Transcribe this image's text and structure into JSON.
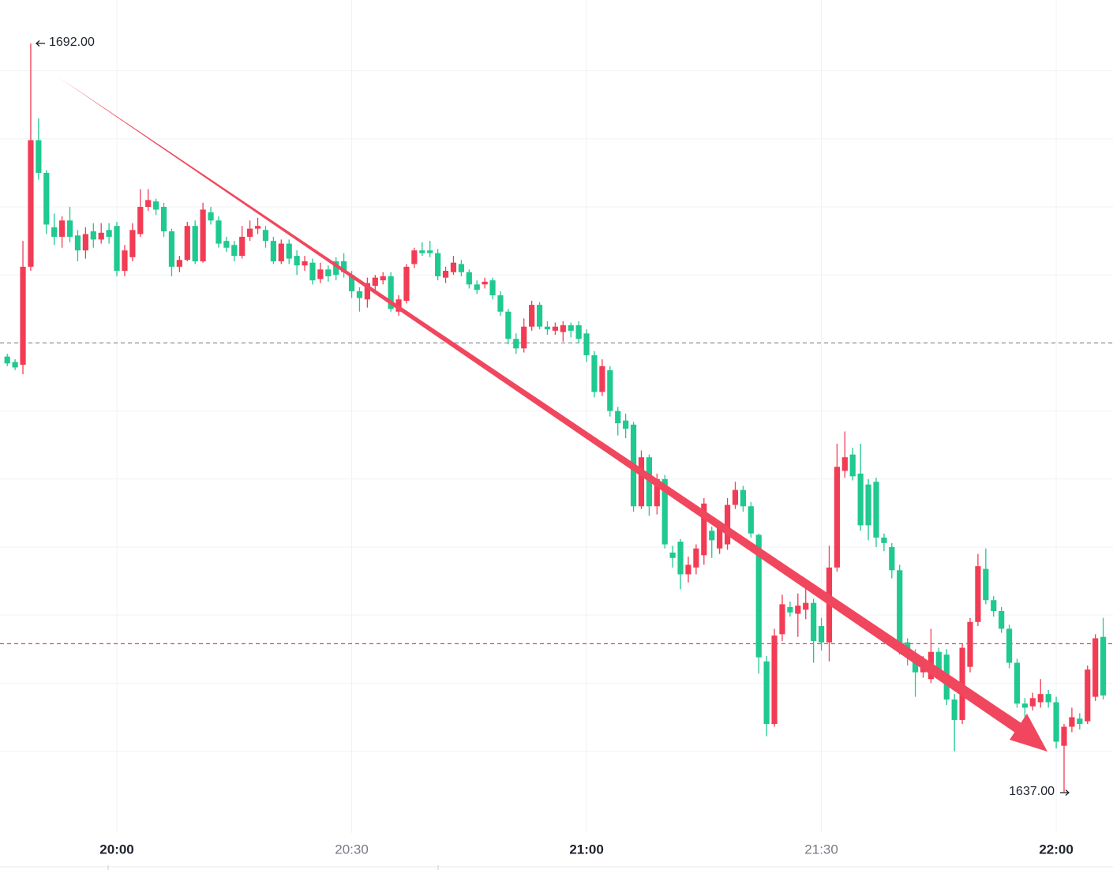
{
  "chart_data": {
    "type": "candlestick",
    "categories": [
      null,
      null,
      null,
      null,
      null,
      null,
      null,
      null,
      null,
      null,
      null,
      null,
      null,
      null,
      "20:00",
      null,
      null,
      null,
      null,
      null,
      null,
      null,
      null,
      null,
      null,
      null,
      null,
      null,
      null,
      null,
      null,
      null,
      null,
      null,
      null,
      null,
      null,
      null,
      null,
      null,
      null,
      null,
      null,
      null,
      "20:30",
      null,
      null,
      null,
      null,
      null,
      null,
      null,
      null,
      null,
      null,
      null,
      null,
      null,
      null,
      null,
      null,
      null,
      null,
      null,
      null,
      null,
      null,
      null,
      null,
      null,
      null,
      null,
      null,
      null,
      "21:00",
      null,
      null,
      null,
      null,
      null,
      null,
      null,
      null,
      null,
      null,
      null,
      null,
      null,
      null,
      null,
      null,
      null,
      null,
      null,
      null,
      null,
      null,
      null,
      null,
      null,
      null,
      null,
      null,
      null,
      "21:30",
      null,
      null,
      null,
      null,
      null,
      null,
      null,
      null,
      null,
      null,
      null,
      null,
      null,
      null,
      null,
      null,
      null,
      null,
      null,
      null,
      null,
      null,
      null,
      null,
      null,
      null,
      null,
      null,
      null,
      "22:00",
      null,
      null,
      null,
      null,
      null,
      null
    ],
    "open": [
      1669.0,
      1668.6,
      1668.4,
      1675.6,
      1684.9,
      1682.5,
      1678.5,
      1677.8,
      1679.0,
      1677.9,
      1676.8,
      1678.2,
      1677.6,
      1678.3,
      1678.6,
      1675.3,
      1676.3,
      1678.0,
      1680.0,
      1680.4,
      1680.0,
      1678.2,
      1675.6,
      1676.1,
      1678.6,
      1676.0,
      1679.6,
      1679.0,
      1677.5,
      1677.2,
      1676.4,
      1677.8,
      1678.4,
      1678.3,
      1677.5,
      1676.0,
      1677.3,
      1676.4,
      1675.7,
      1675.9,
      1674.7,
      1675.4,
      1676.0,
      1676.0,
      1675.0,
      1673.8,
      1673.2,
      1674.2,
      1674.6,
      1674.9,
      1672.3,
      1673.1,
      1675.8,
      1676.8,
      1676.8,
      1676.6,
      1674.8,
      1675.2,
      1675.8,
      1675.2,
      1674.3,
      1674.3,
      1674.6,
      1673.5,
      1672.3,
      1670.3,
      1669.6,
      1671.2,
      1672.8,
      1671.2,
      1670.9,
      1670.8,
      1671.3,
      1671.3,
      1670.7,
      1669.1,
      1666.4,
      1668.0,
      1665.0,
      1664.3,
      1664.0,
      1658.0,
      1661.6,
      1658.0,
      1660.0,
      1654.6,
      1655.4,
      1653.0,
      1653.5,
      1654.4,
      1656.2,
      1654.9,
      1655.2,
      1658.1,
      1659.2,
      1658.0,
      1655.9,
      1646.6,
      1642.0,
      1648.6,
      1650.6,
      1650.1,
      1650.4,
      1650.9,
      1649.2,
      1648.0,
      1653.5,
      1660.6,
      1661.8,
      1660.4,
      1659.6,
      1659.8,
      1655.7,
      1655.0,
      1653.3,
      1648.0,
      1647.1,
      1645.8,
      1645.3,
      1647.3,
      1647.1,
      1643.8,
      1642.3,
      1646.2,
      1649.5,
      1653.4,
      1651.1,
      1650.3,
      1649.0,
      1646.5,
      1643.5,
      1643.3,
      1643.6,
      1644.2,
      1643.6,
      1640.4,
      1641.8,
      1642.4,
      1642.2,
      1644.0,
      1648.4
    ],
    "high": [
      1669.2,
      1668.8,
      1677.5,
      1692.0,
      1686.5,
      1682.7,
      1679.5,
      1679.3,
      1680.0,
      1678.3,
      1678.5,
      1678.8,
      1678.8,
      1678.8,
      1678.9,
      1677.2,
      1678.8,
      1681.3,
      1681.3,
      1680.6,
      1680.3,
      1678.4,
      1676.4,
      1678.9,
      1679.0,
      1680.3,
      1680.0,
      1679.3,
      1677.8,
      1677.5,
      1678.6,
      1679.0,
      1679.2,
      1678.6,
      1677.8,
      1677.6,
      1677.6,
      1676.8,
      1676.4,
      1676.2,
      1675.9,
      1675.7,
      1676.3,
      1676.6,
      1675.3,
      1674.1,
      1674.8,
      1675.0,
      1675.2,
      1675.2,
      1673.5,
      1675.8,
      1677.0,
      1677.4,
      1677.5,
      1676.9,
      1675.6,
      1676.4,
      1676.1,
      1675.4,
      1674.6,
      1674.8,
      1674.8,
      1673.8,
      1672.5,
      1670.7,
      1671.8,
      1673.1,
      1673.0,
      1671.6,
      1671.5,
      1671.6,
      1671.5,
      1671.6,
      1671.0,
      1669.4,
      1668.8,
      1668.3,
      1665.3,
      1664.8,
      1664.2,
      1662.1,
      1661.8,
      1660.4,
      1660.3,
      1655.1,
      1655.6,
      1654.3,
      1655.2,
      1658.6,
      1656.5,
      1656.8,
      1658.6,
      1659.8,
      1659.5,
      1658.3,
      1656.0,
      1647.0,
      1649.0,
      1651.5,
      1651.0,
      1651.6,
      1652.5,
      1651.2,
      1649.8,
      1655.1,
      1662.6,
      1663.5,
      1662.3,
      1662.6,
      1660.0,
      1660.1,
      1656.0,
      1655.3,
      1653.7,
      1648.3,
      1647.5,
      1647.0,
      1649.0,
      1647.6,
      1647.5,
      1644.2,
      1647.9,
      1649.8,
      1654.5,
      1654.9,
      1651.4,
      1650.6,
      1649.3,
      1646.8,
      1643.9,
      1644.3,
      1645.3,
      1644.5,
      1644.0,
      1642.0,
      1643.2,
      1642.8,
      1646.3,
      1648.6,
      1649.8
    ],
    "low": [
      1668.3,
      1668.0,
      1667.7,
      1675.3,
      1682.0,
      1678.0,
      1677.2,
      1677.0,
      1677.4,
      1676.0,
      1676.2,
      1677.0,
      1677.3,
      1677.3,
      1674.9,
      1674.9,
      1676.0,
      1677.8,
      1679.7,
      1679.4,
      1677.8,
      1674.9,
      1675.2,
      1676.0,
      1675.8,
      1675.9,
      1678.7,
      1677.0,
      1676.7,
      1676.0,
      1676.2,
      1677.5,
      1678.0,
      1677.0,
      1675.8,
      1675.8,
      1675.8,
      1675.0,
      1675.3,
      1674.3,
      1674.4,
      1674.5,
      1674.6,
      1674.8,
      1673.3,
      1672.3,
      1672.6,
      1673.8,
      1674.3,
      1672.3,
      1672.0,
      1672.9,
      1675.5,
      1676.4,
      1676.3,
      1674.6,
      1674.4,
      1675.0,
      1674.9,
      1674.0,
      1673.6,
      1674.0,
      1673.2,
      1672.0,
      1669.9,
      1669.2,
      1669.3,
      1670.9,
      1671.0,
      1670.6,
      1670.6,
      1670.1,
      1670.4,
      1670.0,
      1668.6,
      1666.0,
      1666.1,
      1664.6,
      1663.2,
      1663.0,
      1657.6,
      1657.8,
      1657.3,
      1657.4,
      1654.9,
      1653.5,
      1651.9,
      1652.4,
      1653.0,
      1653.7,
      1654.2,
      1654.5,
      1654.8,
      1657.8,
      1657.6,
      1655.7,
      1645.7,
      1641.1,
      1641.8,
      1648.1,
      1649.9,
      1648.4,
      1649.7,
      1646.5,
      1647.4,
      1646.6,
      1653.2,
      1660.1,
      1659.9,
      1656.2,
      1655.5,
      1655.0,
      1654.7,
      1652.7,
      1647.1,
      1646.3,
      1644.0,
      1645.4,
      1645.0,
      1645.3,
      1643.4,
      1640.0,
      1642.0,
      1645.8,
      1649.2,
      1650.8,
      1649.9,
      1648.7,
      1646.1,
      1643.2,
      1641.0,
      1643.0,
      1643.2,
      1643.2,
      1640.2,
      1637.0,
      1641.4,
      1641.6,
      1642.0,
      1643.7,
      1643.8
    ],
    "close": [
      1668.5,
      1668.2,
      1675.6,
      1684.9,
      1682.5,
      1678.7,
      1677.8,
      1679.0,
      1677.8,
      1676.8,
      1678.0,
      1677.6,
      1678.1,
      1677.8,
      1675.3,
      1676.8,
      1678.3,
      1680.0,
      1680.5,
      1679.8,
      1678.2,
      1675.6,
      1676.1,
      1678.6,
      1676.0,
      1679.8,
      1679.0,
      1677.3,
      1677.0,
      1676.4,
      1677.8,
      1678.4,
      1678.6,
      1677.5,
      1676.0,
      1677.3,
      1676.2,
      1675.7,
      1676.0,
      1674.6,
      1675.4,
      1674.9,
      1675.0,
      1675.2,
      1673.8,
      1673.3,
      1674.4,
      1674.8,
      1674.9,
      1672.5,
      1673.2,
      1675.6,
      1676.8,
      1676.6,
      1676.6,
      1674.9,
      1675.3,
      1675.9,
      1675.2,
      1674.3,
      1673.9,
      1674.5,
      1673.5,
      1672.3,
      1670.3,
      1669.6,
      1671.2,
      1672.8,
      1671.2,
      1671.0,
      1671.2,
      1671.3,
      1670.9,
      1670.3,
      1669.1,
      1666.4,
      1668.3,
      1665.0,
      1664.1,
      1663.7,
      1658.0,
      1661.6,
      1658.0,
      1660.0,
      1655.2,
      1654.2,
      1653.0,
      1653.7,
      1654.9,
      1658.2,
      1655.5,
      1656.4,
      1658.1,
      1659.2,
      1658.0,
      1656.0,
      1646.9,
      1642.0,
      1648.5,
      1650.8,
      1650.2,
      1650.7,
      1650.9,
      1648.1,
      1648.0,
      1653.5,
      1660.9,
      1661.6,
      1660.2,
      1656.6,
      1656.6,
      1655.7,
      1655.3,
      1653.3,
      1647.5,
      1646.9,
      1645.8,
      1646.6,
      1647.3,
      1645.8,
      1643.8,
      1642.3,
      1647.6,
      1649.5,
      1653.6,
      1651.1,
      1650.3,
      1649.0,
      1646.5,
      1643.5,
      1643.2,
      1643.9,
      1644.2,
      1643.6,
      1640.7,
      1641.8,
      1642.5,
      1642.0,
      1646.0,
      1648.3,
      1644.1
    ],
    "up_color": "#f23c55",
    "down_color": "#1fc98f",
    "ylim": [
      1634,
      1695.2
    ],
    "grid": true,
    "grid_values": [
      1640,
      1645,
      1650,
      1655,
      1660,
      1665,
      1670,
      1675,
      1680,
      1685,
      1690
    ],
    "reference_lines": [
      {
        "value": 1670.0,
        "color": "#8a8f9c"
      },
      {
        "value": 1647.9,
        "color": "#e8394f"
      }
    ],
    "high_label": "1692.00",
    "low_label": "1637.00"
  }
}
